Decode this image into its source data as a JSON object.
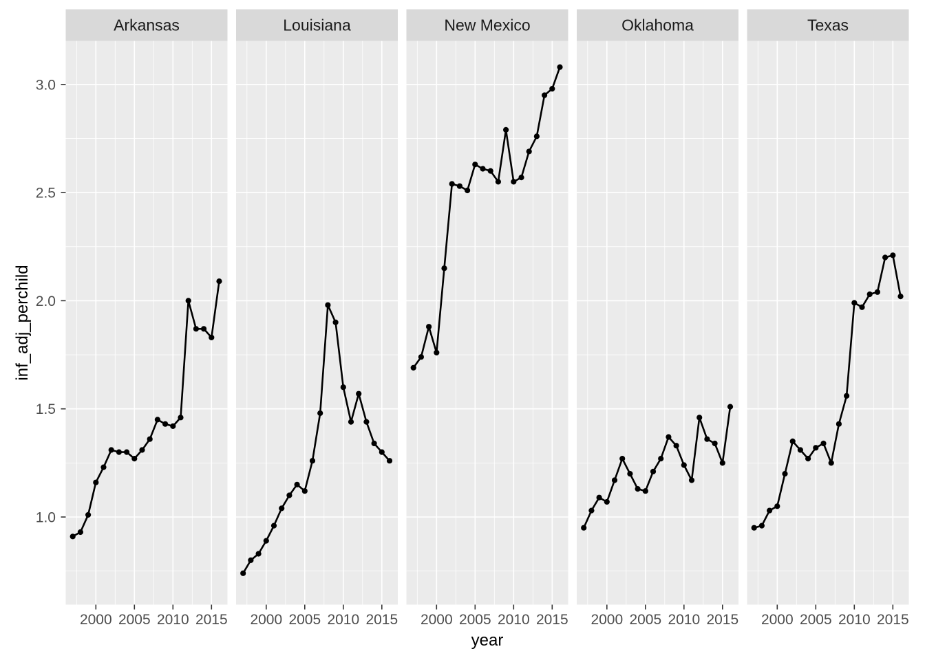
{
  "chart_data": {
    "type": "line",
    "title": "",
    "xlabel": "year",
    "ylabel": "inf_adj_perchild",
    "x": [
      1997,
      1998,
      1999,
      2000,
      2001,
      2002,
      2003,
      2004,
      2005,
      2006,
      2007,
      2008,
      2009,
      2010,
      2011,
      2012,
      2013,
      2014,
      2015,
      2016
    ],
    "series": [
      {
        "name": "Arkansas",
        "values": [
          0.91,
          0.93,
          1.01,
          1.16,
          1.23,
          1.31,
          1.3,
          1.3,
          1.27,
          1.31,
          1.36,
          1.45,
          1.43,
          1.42,
          1.46,
          2.0,
          1.87,
          1.87,
          1.83,
          2.09
        ]
      },
      {
        "name": "Louisiana",
        "values": [
          0.74,
          0.8,
          0.83,
          0.89,
          0.96,
          1.04,
          1.1,
          1.15,
          1.12,
          1.26,
          1.48,
          1.98,
          1.9,
          1.6,
          1.44,
          1.57,
          1.44,
          1.34,
          1.3,
          1.26
        ]
      },
      {
        "name": "New Mexico",
        "values": [
          1.69,
          1.74,
          1.88,
          1.76,
          2.15,
          2.54,
          2.53,
          2.51,
          2.63,
          2.61,
          2.6,
          2.55,
          2.79,
          2.55,
          2.57,
          2.69,
          2.76,
          2.95,
          2.98,
          3.08
        ]
      },
      {
        "name": "Oklahoma",
        "values": [
          0.95,
          1.03,
          1.09,
          1.07,
          1.17,
          1.27,
          1.2,
          1.13,
          1.12,
          1.21,
          1.27,
          1.37,
          1.33,
          1.24,
          1.17,
          1.46,
          1.36,
          1.34,
          1.25,
          1.51
        ]
      },
      {
        "name": "Texas",
        "values": [
          0.95,
          0.96,
          1.03,
          1.05,
          1.2,
          1.35,
          1.31,
          1.27,
          1.32,
          1.34,
          1.25,
          1.43,
          1.56,
          1.99,
          1.97,
          2.03,
          2.04,
          2.2,
          2.21,
          2.02
        ]
      }
    ],
    "x_tick_labels": [
      "2000",
      "2005",
      "2010",
      "2015"
    ],
    "x_tick_years": [
      2000,
      2005,
      2010,
      2015
    ],
    "x_minor_years": [
      1997.5,
      2002.5,
      2007.5,
      2012.5
    ],
    "y_tick_labels": [
      "1.0",
      "1.5",
      "2.0",
      "2.5",
      "3.0"
    ],
    "y_tick_values": [
      1.0,
      1.5,
      2.0,
      2.5,
      3.0
    ],
    "y_minor_values": [
      0.75,
      1.25,
      1.75,
      2.25,
      2.75
    ],
    "layout": {
      "facet_layout": "grid-1-row",
      "legend": "none",
      "grid": "on",
      "xlim": [
        1996.1,
        2017.1
      ],
      "ylim": [
        0.59,
        3.2
      ]
    },
    "colors": {
      "page_bg": "#ffffff",
      "panel_bg": "#ebebeb",
      "strip_bg": "#d9d9d9",
      "grid": "#ffffff",
      "line": "#000000",
      "point": "#000000",
      "tick_mark": "#333333",
      "tick_label": "#4d4d4d",
      "strip_text": "#1a1a1a",
      "axis_title": "#000000"
    }
  }
}
